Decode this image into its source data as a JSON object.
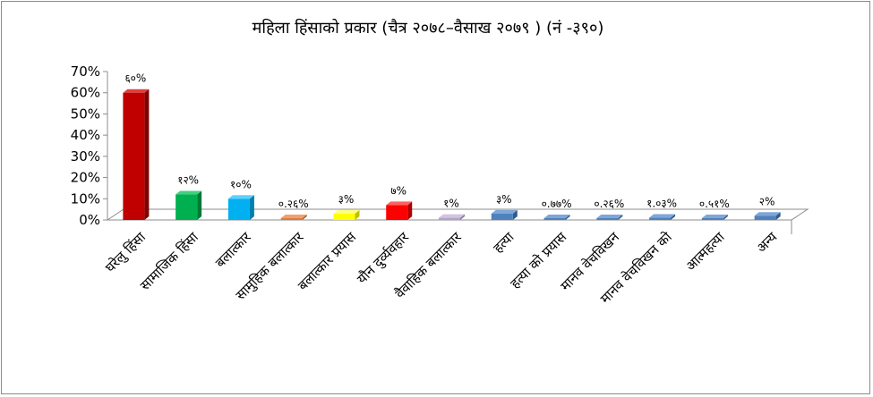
{
  "chart_data": {
    "type": "bar",
    "title": "महिला हिंसाको प्रकार (चैत्र २०७८–वैसाख २०७९ ) (नं -३९०)",
    "ylim": [
      0,
      70
    ],
    "y_ticks": [
      "0%",
      "10%",
      "20%",
      "30%",
      "40%",
      "50%",
      "60%",
      "70%"
    ],
    "grid": false,
    "legend": "none",
    "categories": [
      "घरेलु हिंसा",
      "सामाजिक हिंसा",
      "बलात्कार",
      "सामुहिक बलात्कार",
      "बलात्कार प्रयास",
      "यौन दुर्व्यवहार",
      "वैवाहिक बलात्कार",
      "हत्या",
      "हत्या को प्रयास",
      "मानव वेचविखन",
      "मानव वेचविखन को",
      "आत्महत्या",
      "अन्य"
    ],
    "values": [
      60,
      12,
      10,
      0.26,
      3,
      7,
      1,
      3,
      0.77,
      0.26,
      1.03,
      0.51,
      2
    ],
    "data_labels": [
      "६०%",
      "१२%",
      "१०%",
      "०.२६%",
      "३%",
      "७%",
      "१%",
      "३%",
      "०.७७%",
      "०.२६%",
      "१.०३%",
      "०.५१%",
      "२%"
    ],
    "colors": [
      {
        "front": "#c00000",
        "side": "#800000",
        "top": "#e04040"
      },
      {
        "front": "#00b050",
        "side": "#007a36",
        "top": "#40d080"
      },
      {
        "front": "#00b0f0",
        "side": "#0080b0",
        "top": "#60d0ff"
      },
      {
        "front": "#e07b39",
        "side": "#a85520",
        "top": "#f0a070"
      },
      {
        "front": "#ffff00",
        "side": "#c0c000",
        "top": "#ffff80"
      },
      {
        "front": "#ff0000",
        "side": "#b00000",
        "top": "#ff6060"
      },
      {
        "front": "#b3a2c7",
        "side": "#8a7aa0",
        "top": "#d0c4e0"
      },
      {
        "front": "#4f81bd",
        "side": "#2f5a8f",
        "top": "#7ea6d8"
      },
      {
        "front": "#4f81bd",
        "side": "#2f5a8f",
        "top": "#7ea6d8"
      },
      {
        "front": "#4f81bd",
        "side": "#2f5a8f",
        "top": "#7ea6d8"
      },
      {
        "front": "#4f81bd",
        "side": "#2f5a8f",
        "top": "#7ea6d8"
      },
      {
        "front": "#4f81bd",
        "side": "#2f5a8f",
        "top": "#7ea6d8"
      },
      {
        "front": "#4f81bd",
        "side": "#2f5a8f",
        "top": "#7ea6d8"
      }
    ]
  }
}
